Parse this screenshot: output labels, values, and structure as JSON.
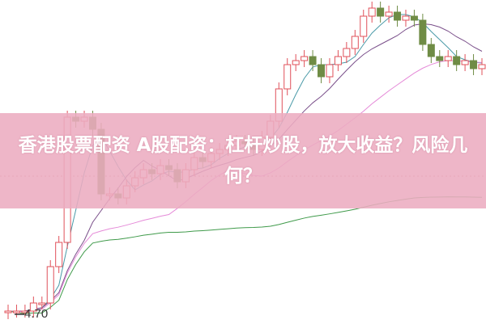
{
  "banner": {
    "title": "香港股票配资 A股配资：杠杆炒股，放大收益？风险几何？"
  },
  "chart_data": {
    "type": "candlestick",
    "price_label": "4.70",
    "closes": [
      4.725,
      4.725,
      4.725,
      4.775,
      4.775,
      5.0,
      5.15,
      5.925,
      5.9,
      5.925,
      5.85,
      5.45,
      5.45,
      5.425,
      5.5,
      5.55,
      5.6,
      5.575,
      5.625,
      5.6,
      5.525,
      5.6,
      5.675,
      5.65,
      5.7,
      5.725,
      5.75,
      5.775,
      5.76,
      5.725,
      5.8,
      5.9,
      6.1,
      6.25,
      6.275,
      6.3,
      6.25,
      6.175,
      6.25,
      6.3,
      6.35,
      6.425,
      6.55,
      6.6,
      6.55,
      6.575,
      6.525,
      6.55,
      6.525,
      6.375,
      6.3,
      6.275,
      6.3,
      6.25,
      6.275,
      6.225,
      6.25
    ],
    "moving_averages": [
      "MA5",
      "MA10",
      "MA20",
      "MA60"
    ],
    "colors": {
      "up": "#e0505a",
      "down": "#6f8c45",
      "ma5": "#4a9aa8",
      "ma10": "#7a4f8a",
      "ma20": "#e58ad8",
      "ma60": "#3f9a4a",
      "banner": "#ecacc0"
    }
  }
}
